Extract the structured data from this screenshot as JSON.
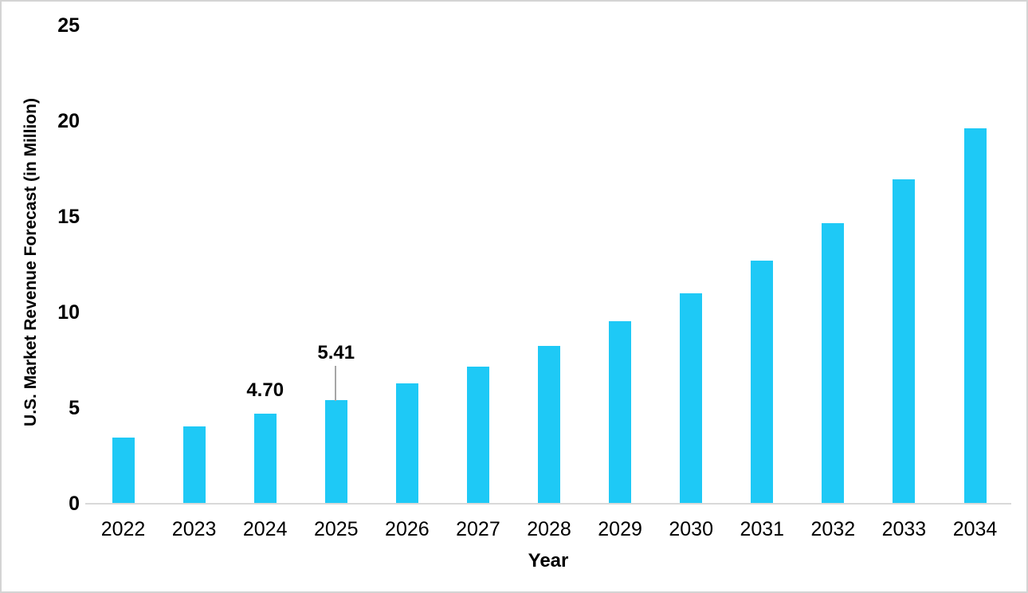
{
  "chart_data": {
    "type": "bar",
    "title": "",
    "xlabel": "Year",
    "ylabel": "U.S. Market Revenue Forecast (in Million)",
    "categories": [
      "2022",
      "2023",
      "2024",
      "2025",
      "2026",
      "2027",
      "2028",
      "2029",
      "2030",
      "2031",
      "2032",
      "2033",
      "2034"
    ],
    "values": [
      3.44,
      4.03,
      4.7,
      5.41,
      6.28,
      7.18,
      8.26,
      9.55,
      11.0,
      12.71,
      14.68,
      16.95,
      19.63
    ],
    "data_labels": [
      {
        "year": "2024",
        "text": "4.70",
        "leader_line": false
      },
      {
        "year": "2025",
        "text": "5.41",
        "leader_line": true
      }
    ],
    "ylim": [
      0,
      25
    ],
    "yticks": [
      0,
      5,
      10,
      15,
      20,
      25
    ],
    "grid": false,
    "legend": false,
    "bar_color": "#1ec9f6",
    "axis_line_color": "#d9d9d9",
    "leader_line_color": "#a6a6a6",
    "text_color": "#000000"
  }
}
